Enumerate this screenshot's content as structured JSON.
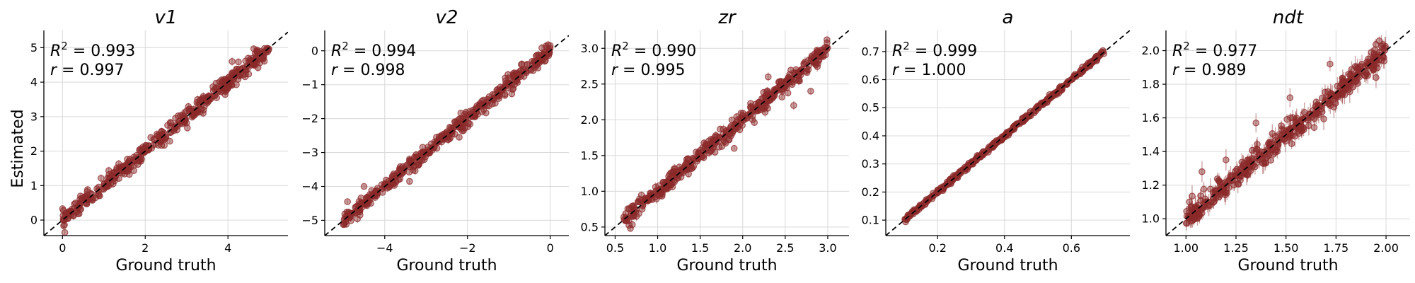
{
  "figure": {
    "ylabel": "Estimated",
    "xlabel": "Ground truth",
    "point_color": "#8b2a2a",
    "diag_color": "#000000"
  },
  "chart_data": [
    {
      "type": "scatter",
      "title": "v1",
      "stat_r2": "= 0.993",
      "stat_r": "= 0.997",
      "xlim": [
        -0.45,
        5.45
      ],
      "ylim": [
        -0.45,
        5.5
      ],
      "xticks": [
        0,
        2,
        4
      ],
      "yticks": [
        0,
        1,
        2,
        3,
        4,
        5
      ],
      "xtick_labels": [
        "0",
        "2",
        "4"
      ],
      "ytick_labels": [
        "0",
        "1",
        "2",
        "3",
        "4",
        "5"
      ],
      "range": [
        0.0,
        5.0
      ],
      "noise": 0.12,
      "errbar": 0.09,
      "outliers": [
        [
          3.4,
          3.1
        ],
        [
          4.1,
          4.6
        ],
        [
          0.8,
          0.65
        ],
        [
          2.3,
          2.45
        ],
        [
          4.7,
          4.9
        ]
      ],
      "grid": true
    },
    {
      "type": "scatter",
      "title": "v2",
      "stat_r2": "= 0.994",
      "stat_r": "= 0.998",
      "xlim": [
        -5.45,
        0.45
      ],
      "ylim": [
        -5.45,
        0.6
      ],
      "xticks": [
        -4,
        -2,
        0
      ],
      "yticks": [
        -5,
        -4,
        -3,
        -2,
        -1,
        0
      ],
      "xtick_labels": [
        "−4",
        "−2",
        "0"
      ],
      "ytick_labels": [
        "−5",
        "−4",
        "−3",
        "−2",
        "−1",
        "0"
      ],
      "range": [
        -5.0,
        0.0
      ],
      "noise": 0.12,
      "errbar": 0.09,
      "outliers": [
        [
          -3.4,
          -3.85
        ],
        [
          -4.5,
          -4.0
        ],
        [
          -4.9,
          -4.45
        ],
        [
          -2.2,
          -2.55
        ]
      ],
      "grid": true
    },
    {
      "type": "scatter",
      "title": "zr",
      "stat_r2": "= 0.990",
      "stat_r": "= 0.995",
      "xlim": [
        0.38,
        3.25
      ],
      "ylim": [
        0.38,
        3.25
      ],
      "xticks": [
        0.5,
        1.0,
        1.5,
        2.0,
        2.5,
        3.0
      ],
      "yticks": [
        0.5,
        1.0,
        1.5,
        2.0,
        2.5,
        3.0
      ],
      "xtick_labels": [
        "0.5",
        "1.0",
        "1.5",
        "2.0",
        "2.5",
        "3.0"
      ],
      "ytick_labels": [
        "0.5",
        "1.0",
        "1.5",
        "2.0",
        "2.5",
        "3.0"
      ],
      "range": [
        0.6,
        3.0
      ],
      "noise": 0.06,
      "errbar": 0.05,
      "outliers": [
        [
          2.3,
          2.6
        ],
        [
          2.8,
          2.4
        ],
        [
          1.9,
          1.6
        ],
        [
          2.6,
          2.2
        ]
      ],
      "grid": true
    },
    {
      "type": "scatter",
      "title": "a",
      "stat_r2": "= 0.999",
      "stat_r": "= 1.000",
      "xlim": [
        0.045,
        0.775
      ],
      "ylim": [
        0.045,
        0.775
      ],
      "xticks": [
        0.2,
        0.4,
        0.6
      ],
      "yticks": [
        0.1,
        0.2,
        0.3,
        0.4,
        0.5,
        0.6,
        0.7
      ],
      "xtick_labels": [
        "0.2",
        "0.4",
        "0.6"
      ],
      "ytick_labels": [
        "0.1",
        "0.2",
        "0.3",
        "0.4",
        "0.5",
        "0.6",
        "0.7"
      ],
      "range": [
        0.1,
        0.7
      ],
      "noise": 0.004,
      "errbar": 0.004,
      "outliers": [],
      "grid": true
    },
    {
      "type": "scatter",
      "title": "ndt",
      "stat_r2": "= 0.977",
      "stat_r": "= 0.989",
      "xlim": [
        0.9,
        2.12
      ],
      "ylim": [
        0.9,
        2.12
      ],
      "xticks": [
        1.0,
        1.25,
        1.5,
        1.75,
        2.0
      ],
      "yticks": [
        1.0,
        1.2,
        1.4,
        1.6,
        1.8,
        2.0
      ],
      "xtick_labels": [
        "1.00",
        "1.25",
        "1.50",
        "1.75",
        "2.00"
      ],
      "ytick_labels": [
        "1.0",
        "1.2",
        "1.4",
        "1.6",
        "1.8",
        "2.0"
      ],
      "range": [
        1.0,
        2.0
      ],
      "noise": 0.035,
      "errbar": 0.03,
      "outliers": [
        [
          1.08,
          1.28
        ],
        [
          1.35,
          1.57
        ],
        [
          1.72,
          1.92
        ],
        [
          1.95,
          1.84
        ],
        [
          1.52,
          1.72
        ],
        [
          1.2,
          1.35
        ]
      ],
      "grid": true
    }
  ]
}
